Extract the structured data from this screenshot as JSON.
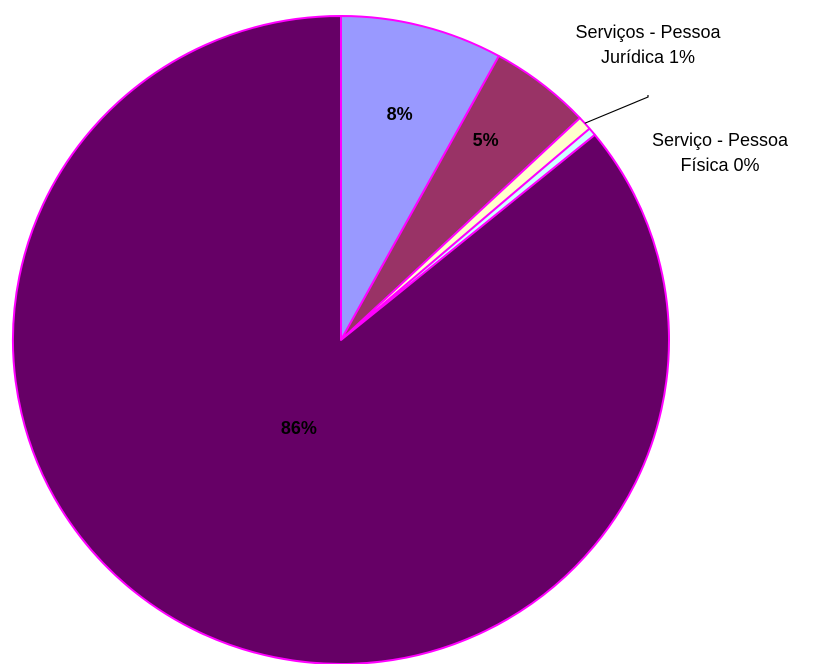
{
  "chart_data": {
    "type": "pie",
    "title": "",
    "start_angle_deg": 0,
    "direction": "clockwise",
    "slices": [
      {
        "value": 8,
        "color": "#9999ff",
        "label": "8%"
      },
      {
        "value": 5,
        "color": "#993366",
        "label": "5%"
      },
      {
        "value": 0.7,
        "color": "#ffffcc",
        "label": "",
        "callout": [
          "Serviços - Pessoa",
          "Jurídica  1%"
        ]
      },
      {
        "value": 0.4,
        "color": "#ccffff",
        "label": "",
        "callout": [
          "Serviço - Pessoa",
          "Física  0%"
        ]
      },
      {
        "value": 86,
        "color": "#660066",
        "label": "86%"
      }
    ],
    "slice_border_color": "#ff00ff"
  }
}
